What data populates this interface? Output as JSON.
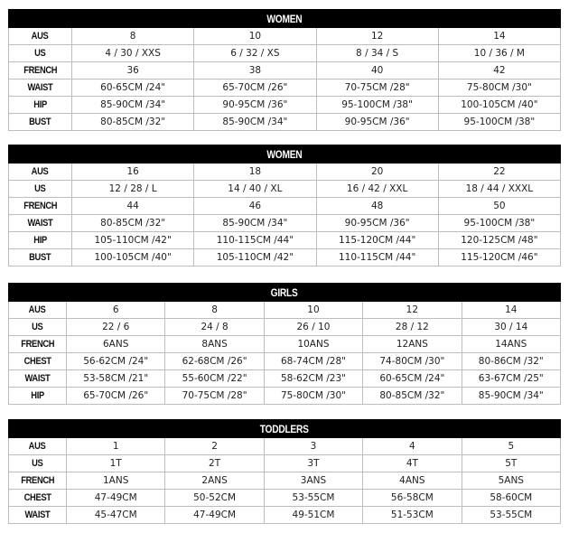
{
  "tables": [
    {
      "title": "WOMEN",
      "rows": [
        {
          "label": "AUS",
          "cells": [
            "8",
            "10",
            "12",
            "14"
          ]
        },
        {
          "label": "US",
          "cells": [
            "4 / 30 / XXS",
            "6 / 32 / XS",
            "8 / 34 / S",
            "10 / 36 / M"
          ]
        },
        {
          "label": "FRENCH",
          "cells": [
            "36",
            "38",
            "40",
            "42"
          ]
        },
        {
          "label": "WAIST",
          "cells": [
            "60-65CM /24\"",
            "65-70CM /26\"",
            "70-75CM /28\"",
            "75-80CM /30\""
          ]
        },
        {
          "label": "HIP",
          "cells": [
            "85-90CM /34\"",
            "90-95CM /36\"",
            "95-100CM /38\"",
            "100-105CM /40\""
          ]
        },
        {
          "label": "BUST",
          "cells": [
            "80-85CM /32\"",
            "85-90CM /34\"",
            "90-95CM /36\"",
            "95-100CM /38\""
          ]
        }
      ]
    },
    {
      "title": "WOMEN",
      "rows": [
        {
          "label": "AUS",
          "cells": [
            "16",
            "18",
            "20",
            "22"
          ]
        },
        {
          "label": "US",
          "cells": [
            "12 / 28 / L",
            "14 / 40 / XL",
            "16 / 42 / XXL",
            "18 / 44 / XXXL"
          ]
        },
        {
          "label": "FRENCH",
          "cells": [
            "44",
            "46",
            "48",
            "50"
          ]
        },
        {
          "label": "WAIST",
          "cells": [
            "80-85CM /32\"",
            "85-90CM /34\"",
            "90-95CM /36\"",
            "95-100CM /38\""
          ]
        },
        {
          "label": "HIP",
          "cells": [
            "105-110CM /42\"",
            "110-115CM /44\"",
            "115-120CM /44\"",
            "120-125CM /48\""
          ]
        },
        {
          "label": "BUST",
          "cells": [
            "100-105CM /40\"",
            "105-110CM /42\"",
            "110-115CM /44\"",
            "115-120CM /46\""
          ]
        }
      ]
    },
    {
      "title": "GIRLS",
      "rows": [
        {
          "label": "AUS",
          "cells": [
            "6",
            "8",
            "10",
            "12",
            "14"
          ]
        },
        {
          "label": "US",
          "cells": [
            "22 / 6",
            "24 / 8",
            "26 / 10",
            "28 / 12",
            "30 / 14"
          ]
        },
        {
          "label": "FRENCH",
          "cells": [
            "6ANS",
            "8ANS",
            "10ANS",
            "12ANS",
            "14ANS"
          ]
        },
        {
          "label": "CHEST",
          "cells": [
            "56-62CM /24\"",
            "62-68CM /26\"",
            "68-74CM /28\"",
            "74-80CM /30\"",
            "80-86CM /32\""
          ]
        },
        {
          "label": "WAIST",
          "cells": [
            "53-58CM /21\"",
            "55-60CM /22\"",
            "58-62CM /23\"",
            "60-65CM /24\"",
            "63-67CM /25\""
          ]
        },
        {
          "label": "HIP",
          "cells": [
            "65-70CM /26\"",
            "70-75CM /28\"",
            "75-80CM /30\"",
            "80-85CM /32\"",
            "85-90CM /34\""
          ]
        }
      ]
    },
    {
      "title": "TODDLERS",
      "rows": [
        {
          "label": "AUS",
          "cells": [
            "1",
            "2",
            "3",
            "4",
            "5"
          ]
        },
        {
          "label": "US",
          "cells": [
            "1T",
            "2T",
            "3T",
            "4T",
            "5T"
          ]
        },
        {
          "label": "FRENCH",
          "cells": [
            "1ANS",
            "2ANS",
            "3ANS",
            "4ANS",
            "5ANS"
          ]
        },
        {
          "label": "CHEST",
          "cells": [
            "47-49CM",
            "50-52CM",
            "53-55CM",
            "56-58CM",
            "58-60CM"
          ]
        },
        {
          "label": "WAIST",
          "cells": [
            "45-47CM",
            "47-49CM",
            "49-51CM",
            "51-53CM",
            "53-55CM"
          ]
        }
      ]
    }
  ]
}
